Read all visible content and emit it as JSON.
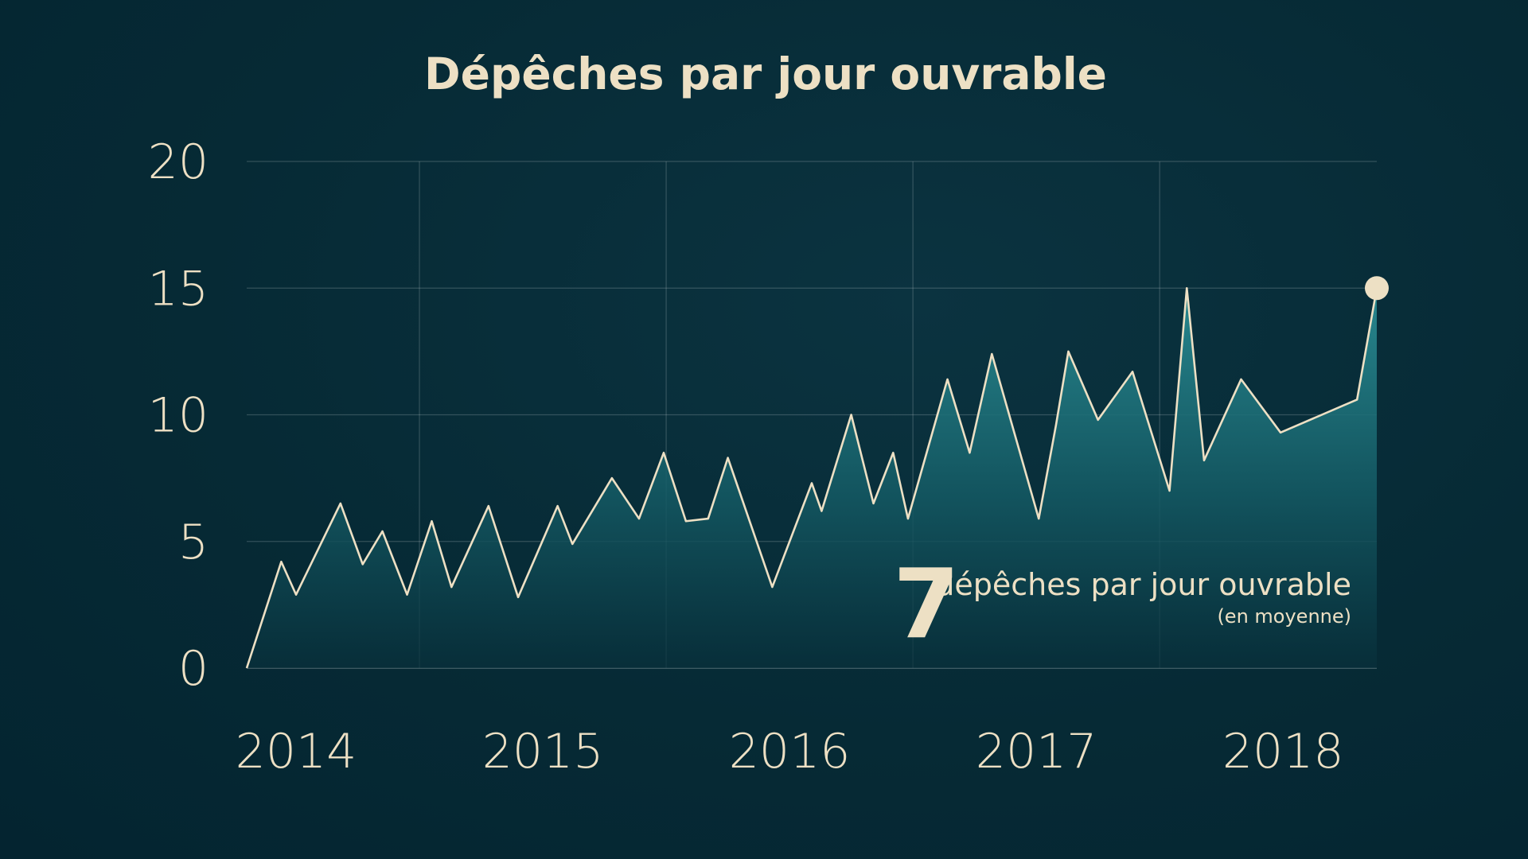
{
  "chart_data": {
    "type": "area",
    "title": "Dépêches par jour ouvrable",
    "xlabel": "",
    "ylabel": "",
    "ylim": [
      0,
      20
    ],
    "yticks": [
      "0",
      "5",
      "10",
      "15",
      "20"
    ],
    "xticks": [
      "2014",
      "2015",
      "2016",
      "2017",
      "2018"
    ],
    "xlim": [
      2014.0,
      2018.58
    ],
    "grid": true,
    "series": [
      {
        "x": [
          2014.0,
          2014.14,
          2014.2,
          2014.38,
          2014.47,
          2014.55,
          2014.65,
          2014.75,
          2014.83,
          2014.98,
          2015.1,
          2015.26,
          2015.32,
          2015.48,
          2015.59,
          2015.69,
          2015.78,
          2015.87,
          2015.95,
          2016.13,
          2016.29,
          2016.33,
          2016.45,
          2016.54,
          2016.62,
          2016.68,
          2016.84,
          2016.93,
          2017.02,
          2017.21,
          2017.28,
          2017.33,
          2017.45,
          2017.59,
          2017.74,
          2017.81,
          2017.88,
          2018.03,
          2018.19,
          2018.5,
          2018.58
        ],
        "values": [
          0,
          4.2,
          2.9,
          6.5,
          4.1,
          5.4,
          2.9,
          5.8,
          3.2,
          6.4,
          2.8,
          6.4,
          4.9,
          7.5,
          5.9,
          8.5,
          5.8,
          5.9,
          8.3,
          3.2,
          7.3,
          6.2,
          10.0,
          6.5,
          8.5,
          5.9,
          11.4,
          8.5,
          12.4,
          5.9,
          9.6,
          12.5,
          9.8,
          11.7,
          7.0,
          15.0,
          8.2,
          11.4,
          9.3,
          10.6,
          15.0
        ]
      }
    ],
    "accent_color": "#1f7c86",
    "line_color": "#ede0c4",
    "background_color": "#062a35",
    "annotation": {
      "big_number": "7",
      "main_text": "dépêches par jour ouvrable",
      "sub_text": "(en moyenne)"
    }
  }
}
